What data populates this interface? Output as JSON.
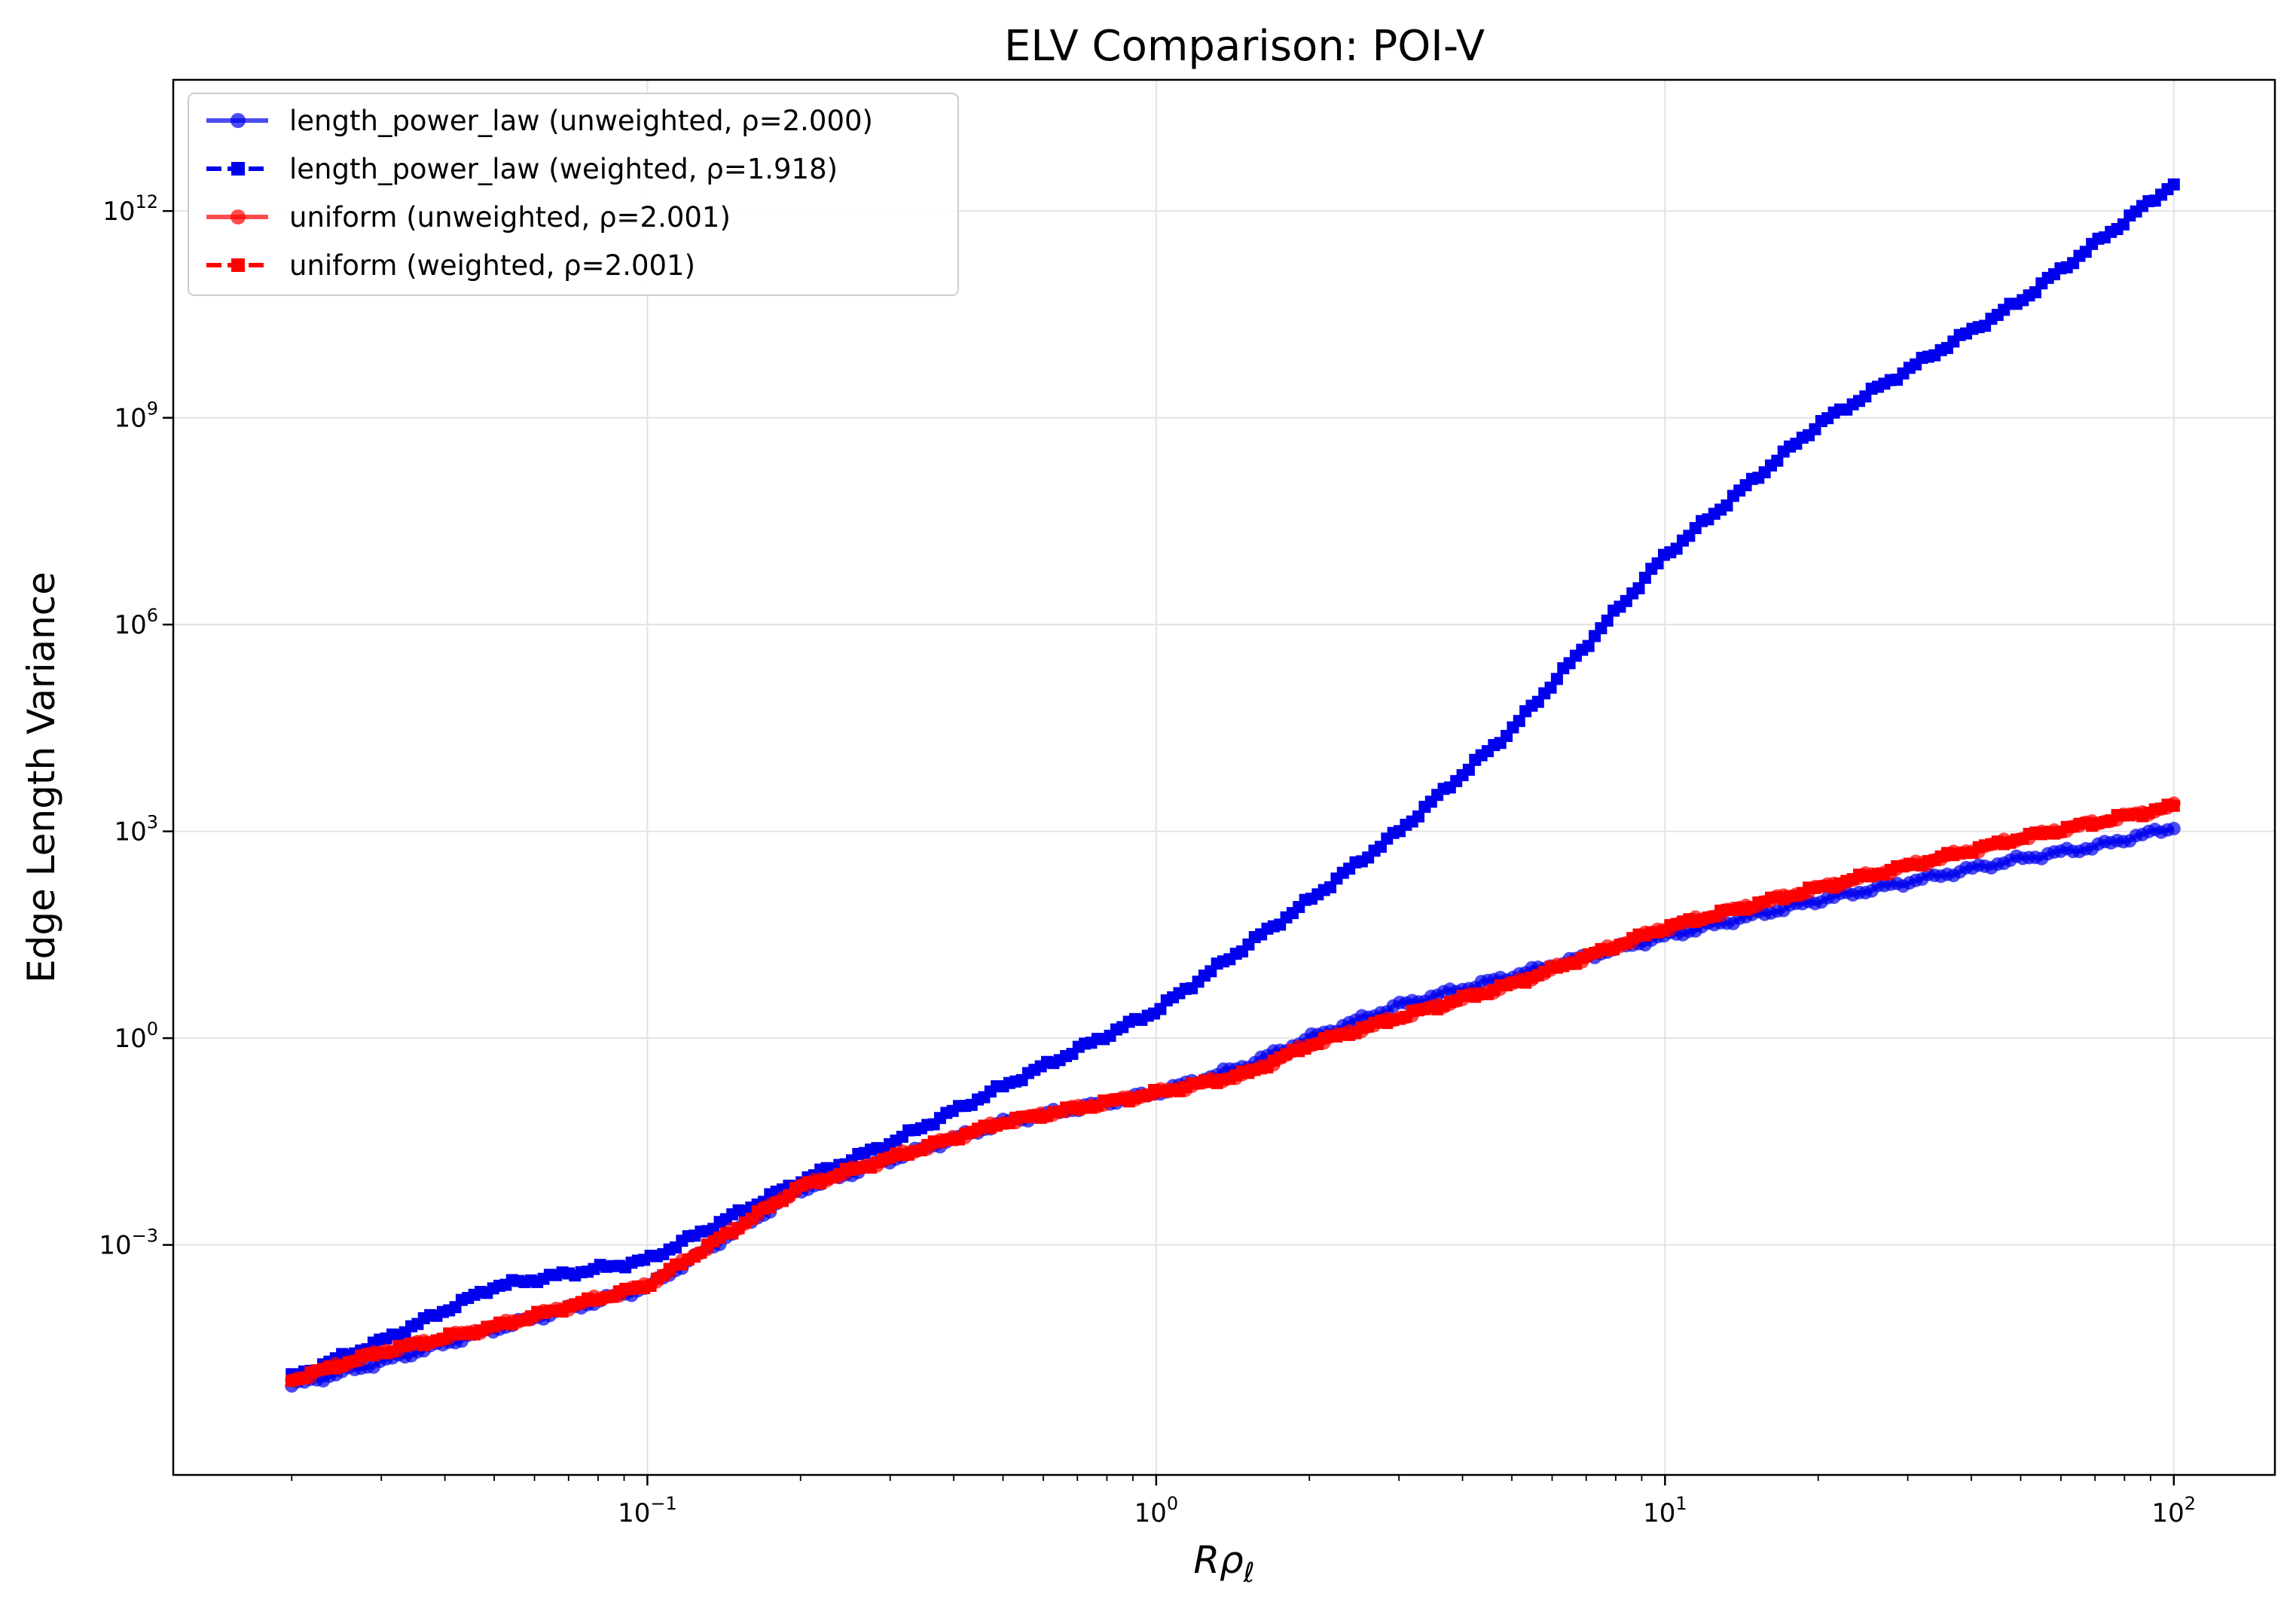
{
  "chart_data": {
    "type": "line",
    "title": "ELV Comparison: POI-V",
    "xlabel": "Rρℓ",
    "ylabel": "Edge Length Variance",
    "xscale": "log",
    "yscale": "log",
    "xlim": [
      0.0117,
      158
    ],
    "ylim": [
      4.6e-07,
      80000000000000.0
    ],
    "grid": true,
    "legend_position": "upper left",
    "x_ticks": [
      {
        "value": 0.1,
        "base": "10",
        "exp": "−1"
      },
      {
        "value": 1,
        "base": "10",
        "exp": "0"
      },
      {
        "value": 10,
        "base": "10",
        "exp": "1"
      },
      {
        "value": 100,
        "base": "10",
        "exp": "2"
      }
    ],
    "y_ticks": [
      {
        "value": 0.001,
        "base": "10",
        "exp": "−3"
      },
      {
        "value": 1,
        "base": "10",
        "exp": "0"
      },
      {
        "value": 1000,
        "base": "10",
        "exp": "3"
      },
      {
        "value": 1000000,
        "base": "10",
        "exp": "6"
      },
      {
        "value": 1000000000,
        "base": "10",
        "exp": "9"
      },
      {
        "value": 1000000000000,
        "base": "10",
        "exp": "12"
      }
    ],
    "series": [
      {
        "name": "length_power_law (unweighted, ρ=2.000)",
        "color": "#0000ee",
        "opacity": 0.7,
        "linestyle": "solid",
        "marker": "circle",
        "x": [
          0.02,
          0.03,
          0.05,
          0.1,
          0.2,
          0.5,
          1,
          1.5,
          2,
          3,
          5,
          10,
          20,
          50,
          70,
          100
        ],
        "y": [
          9e-06,
          2e-05,
          6e-05,
          0.00024,
          0.0063,
          0.06,
          0.16,
          0.4,
          1.0,
          3.0,
          8.0,
          30,
          100,
          400,
          600,
          1150
        ]
      },
      {
        "name": "length_power_law (weighted, ρ=1.918)",
        "color": "#0000ee",
        "opacity": 1.0,
        "linestyle": "dashed",
        "marker": "square",
        "x": [
          0.02,
          0.03,
          0.05,
          0.1,
          0.2,
          0.3,
          0.5,
          1,
          2,
          3,
          5,
          10,
          20,
          50,
          100
        ],
        "y": [
          1.2e-05,
          4e-05,
          0.00025,
          0.0006,
          0.0085,
          0.03,
          0.2,
          2.5,
          100,
          1000,
          30000,
          10000000.0,
          800000000.0,
          50000000000.0,
          2500000000000.0
        ]
      },
      {
        "name": "uniform (unweighted, ρ=2.001)",
        "color": "#ff0000",
        "opacity": 0.7,
        "linestyle": "solid",
        "marker": "circle",
        "x": [
          0.02,
          0.03,
          0.05,
          0.1,
          0.2,
          0.5,
          1,
          1.5,
          2,
          3,
          5,
          10,
          20,
          50,
          100
        ],
        "y": [
          1.1e-05,
          2.8e-05,
          6.5e-05,
          0.00026,
          0.007,
          0.06,
          0.16,
          0.3,
          0.8,
          2.0,
          6.0,
          40,
          150,
          800,
          2300
        ]
      },
      {
        "name": "uniform (weighted, ρ=2.001)",
        "color": "#ff0000",
        "opacity": 1.0,
        "linestyle": "dashed",
        "marker": "square",
        "x": [
          0.02,
          0.03,
          0.05,
          0.1,
          0.2,
          0.5,
          1,
          1.5,
          2,
          3,
          5,
          10,
          20,
          50,
          100
        ],
        "y": [
          1.1e-05,
          2.8e-05,
          6.5e-05,
          0.00026,
          0.007,
          0.06,
          0.16,
          0.3,
          0.8,
          2.0,
          6.0,
          40,
          150,
          800,
          2300
        ]
      }
    ]
  }
}
